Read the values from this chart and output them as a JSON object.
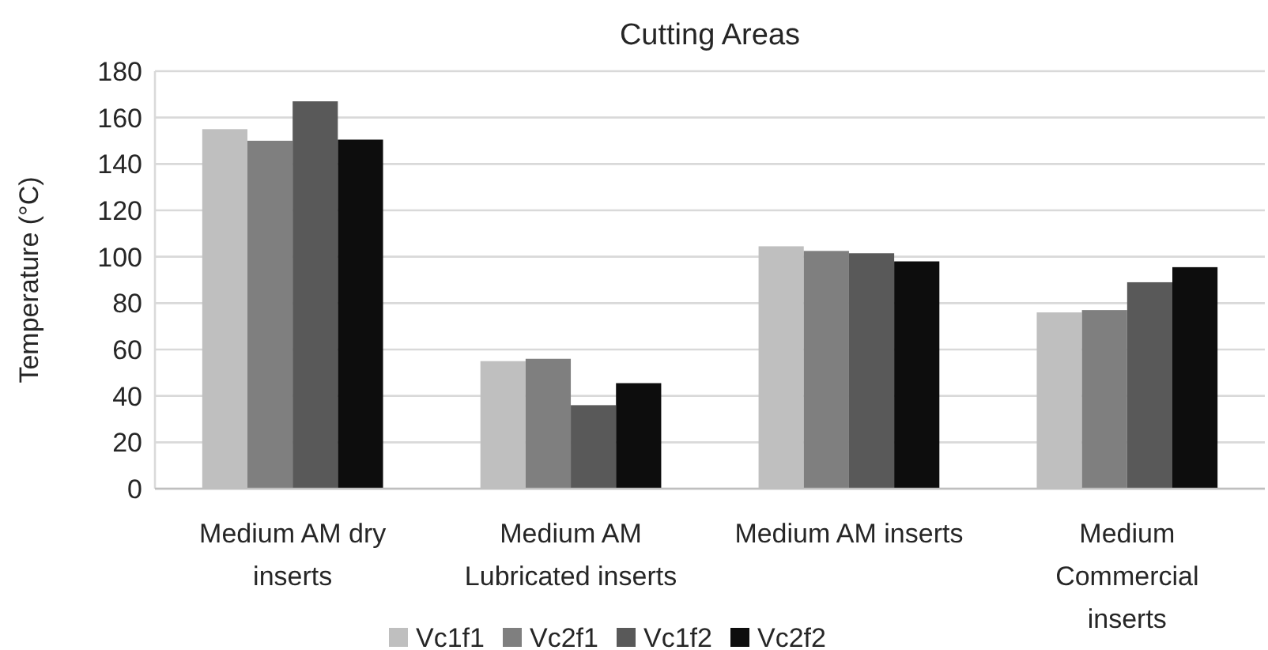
{
  "chart_data": {
    "type": "bar",
    "title": "Cutting Areas",
    "ylabel": "Temperature (°C)",
    "categories": [
      "Medium AM dry inserts",
      "Medium AM Lubricated inserts",
      "Medium AM inserts",
      "Medium Commercial inserts"
    ],
    "series": [
      {
        "name": "Vc1f1",
        "color": "#bfbfbf",
        "values": [
          155,
          55,
          104.5,
          76
        ]
      },
      {
        "name": "Vc2f1",
        "color": "#7f7f7f",
        "values": [
          150,
          56,
          102.5,
          77
        ]
      },
      {
        "name": "Vc1f2",
        "color": "#595959",
        "values": [
          167,
          36,
          101.5,
          89
        ]
      },
      {
        "name": "Vc2f2",
        "color": "#0d0d0d",
        "values": [
          150.5,
          45.5,
          98,
          95.5
        ]
      }
    ],
    "ylim": [
      0,
      180
    ],
    "yticks": [
      0,
      20,
      40,
      60,
      80,
      100,
      120,
      140,
      160,
      180
    ],
    "grid": "y",
    "legend": "bottom"
  }
}
